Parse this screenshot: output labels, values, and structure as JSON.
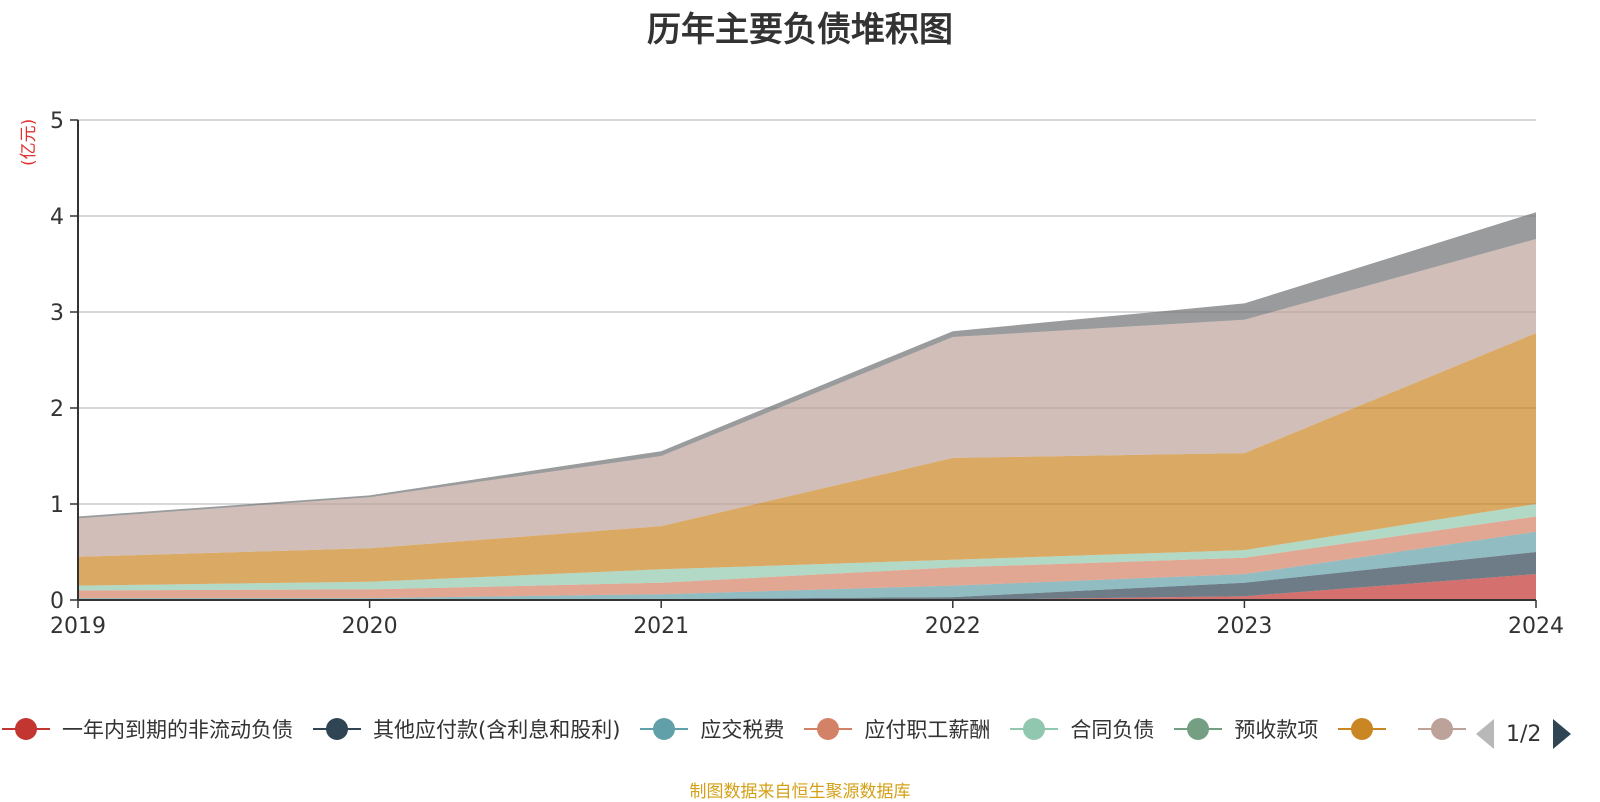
{
  "title": "历年主要负债堆积图",
  "unit_label": "(亿元)",
  "source_note": "制图数据来自恒生聚源数据库",
  "legend": {
    "page_indicator": "1/2"
  },
  "chart_data": {
    "type": "area",
    "stacked": true,
    "title": "历年主要负债堆积图",
    "ylabel": "(亿元)",
    "x": [
      "2019",
      "2020",
      "2021",
      "2022",
      "2023",
      "2024"
    ],
    "ylim": [
      0,
      5
    ],
    "yticks": [
      0,
      1,
      2,
      3,
      4,
      5
    ],
    "grid": true,
    "legend_position": "bottom",
    "series": [
      {
        "name": "一年内到期的非流动负债",
        "color": "#c23531",
        "values": [
          0,
          0,
          0,
          0,
          0.04,
          0.27
        ]
      },
      {
        "name": "其他应付款(含利息和股利)",
        "color": "#2f4554",
        "values": [
          0.01,
          0.01,
          0.01,
          0.03,
          0.14,
          0.23
        ]
      },
      {
        "name": "应交税费",
        "color": "#61a0a8",
        "values": [
          0.01,
          0.01,
          0.05,
          0.12,
          0.09,
          0.21
        ]
      },
      {
        "name": "应付职工薪酬",
        "color": "#d48265",
        "values": [
          0.08,
          0.09,
          0.12,
          0.19,
          0.17,
          0.16
        ]
      },
      {
        "name": "合同负债",
        "color": "#91c7ae",
        "values": [
          0.05,
          0.08,
          0.14,
          0.08,
          0.08,
          0.13
        ]
      },
      {
        "name": "预收款项",
        "color": "#749f83",
        "values": [
          0,
          0,
          0,
          0,
          0,
          0
        ]
      },
      {
        "color": "#ca8622",
        "values": [
          0.3,
          0.35,
          0.45,
          1.06,
          1.01,
          1.78
        ]
      },
      {
        "color": "#bda29a",
        "values": [
          0.4,
          0.53,
          0.73,
          1.26,
          1.39,
          0.98
        ]
      },
      {
        "color": "#6e7074",
        "values": [
          0.02,
          0.02,
          0.05,
          0.06,
          0.17,
          0.28
        ]
      }
    ]
  }
}
